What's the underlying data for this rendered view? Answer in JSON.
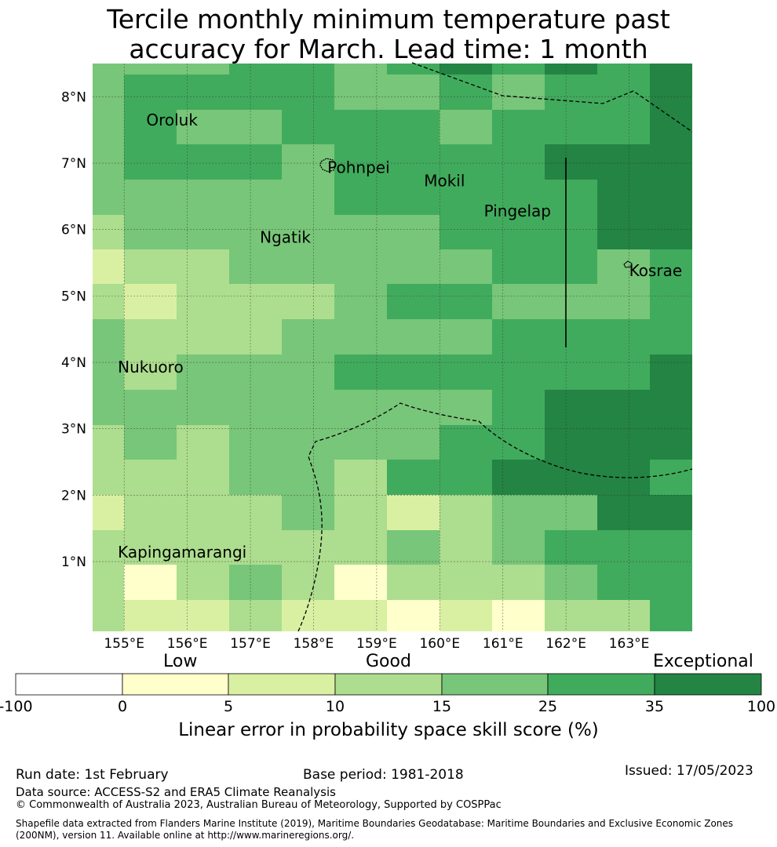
{
  "title_line1": "Tercile monthly minimum temperature past",
  "title_line2": "accuracy for March. Lead time: 1 month",
  "chart_data": {
    "type": "heatmap",
    "x_ticks": [
      "155°E",
      "156°E",
      "157°E",
      "158°E",
      "159°E",
      "160°E",
      "161°E",
      "162°E",
      "163°E"
    ],
    "y_ticks": [
      "8°N",
      "7°N",
      "6°N",
      "5°N",
      "4°N",
      "3°N",
      "2°N",
      "1°N"
    ],
    "x_range": [
      154.5,
      164.0
    ],
    "y_range": [
      -0.05,
      8.5
    ],
    "labels": [
      {
        "name": "Oroluk",
        "lon": 155.35,
        "lat": 7.57
      },
      {
        "name": "Pohnpei",
        "lon": 158.22,
        "lat": 6.85
      },
      {
        "name": "Mokil",
        "lon": 159.75,
        "lat": 6.65
      },
      {
        "name": "Pingelap",
        "lon": 160.7,
        "lat": 6.2
      },
      {
        "name": "Ngatik",
        "lon": 157.15,
        "lat": 5.8
      },
      {
        "name": "Kosrae",
        "lon": 163.0,
        "lat": 5.3
      },
      {
        "name": "Nukuoro",
        "lon": 154.9,
        "lat": 3.85
      },
      {
        "name": "Kapingamarangi",
        "lon": 154.9,
        "lat": 1.06
      }
    ],
    "colorbar": {
      "ticks": [
        "-100",
        "0",
        "5",
        "10",
        "15",
        "25",
        "35",
        "100"
      ],
      "colors": [
        "#ffffff",
        "#ffffcc",
        "#d9f0a3",
        "#addd8e",
        "#78c679",
        "#41ab5d",
        "#238443"
      ],
      "categories": [
        "Low",
        "Good",
        "Exceptional"
      ],
      "label": "Linear error in probability space skill score (%)"
    }
  },
  "footer": {
    "run_date": "Run date: 1st February",
    "base_period": "Base period: 1981-2018",
    "issued": "Issued: 17/05/2023",
    "data_source": "Data source: ACCESS-S2 and ERA5 Climate Reanalysis",
    "copyright": "© Commonwealth of Australia 2023, Australian Bureau of Meteorology, Supported by COSPPac",
    "shapefile": "Shapefile data extracted from Flanders Marine Institute (2019), Maritime Boundaries Geodatabase: Maritime Boundaries and Exclusive Economic Zones (200NM), version 11. Available online at http://www.marineregions.org/."
  }
}
